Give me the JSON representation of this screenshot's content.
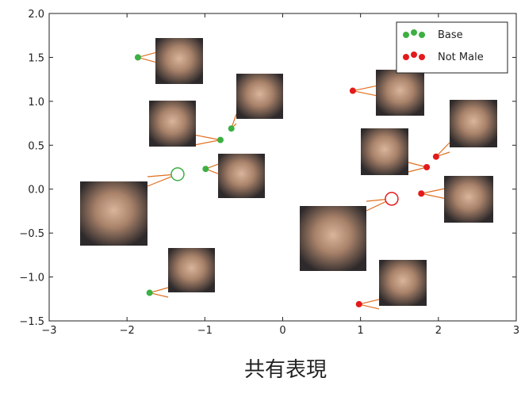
{
  "chart_data": {
    "type": "scatter",
    "xlabel": "共有表現",
    "xlim": [
      -3,
      3
    ],
    "ylim": [
      -1.5,
      2.0
    ],
    "xticks": [
      {
        "value": -3,
        "label": "−3"
      },
      {
        "value": -2,
        "label": "−2"
      },
      {
        "value": -1,
        "label": "−1"
      },
      0,
      1,
      2,
      3
    ],
    "yticks": [
      {
        "value": 2.0,
        "label": "2.0"
      },
      {
        "value": 1.5,
        "label": "1.5"
      },
      {
        "value": 1.0,
        "label": "1.0"
      },
      {
        "value": 0.5,
        "label": "0.5"
      },
      {
        "value": 0.0,
        "label": "0.0"
      },
      {
        "value": -0.5,
        "label": "−0.5"
      },
      {
        "value": -1.0,
        "label": "−1.0"
      },
      {
        "value": -1.5,
        "label": "−1.5"
      }
    ],
    "grid": false,
    "legend": "upper right",
    "series": [
      {
        "name": "Base",
        "color": "#3cb043",
        "x": [
          -1.86,
          -0.8,
          -0.66,
          -0.99,
          -1.71
        ],
        "values": [
          1.5,
          0.56,
          0.69,
          0.23,
          -1.18
        ],
        "centroid": {
          "x": -1.35,
          "y": 0.17
        }
      },
      {
        "name": "Not Male",
        "color": "#e31a1c",
        "x": [
          0.9,
          1.85,
          1.97,
          1.78,
          0.98
        ],
        "values": [
          1.12,
          0.25,
          0.37,
          -0.05,
          -1.31
        ],
        "centroid": {
          "x": 1.4,
          "y": -0.11
        }
      }
    ]
  }
}
